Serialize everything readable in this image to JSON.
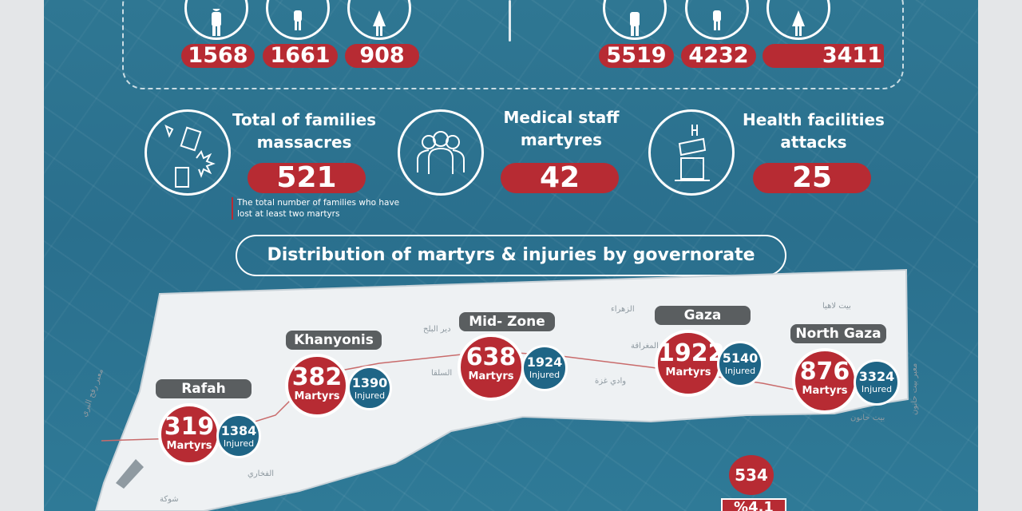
{
  "top_groups": [
    {
      "values": [
        "1568",
        "1661",
        "908"
      ]
    },
    {
      "values": [
        "5519",
        "4232",
        "3411"
      ]
    }
  ],
  "stats": [
    {
      "title": "Total of families massacres",
      "value": "521",
      "icon": "collapsed-building-icon"
    },
    {
      "title": "Medical staff martyres",
      "value": "42",
      "icon": "medical-staff-icon"
    },
    {
      "title": "Health facilities attacks",
      "value": "25",
      "icon": "damaged-hospital-icon"
    }
  ],
  "families_note": "The total number of families who have lost at least two martyrs",
  "distribution_title": "Distribution of martyrs & injuries by governorate",
  "governorates": [
    {
      "name": "Rafah",
      "martyrs": "319",
      "injured": "1384"
    },
    {
      "name": "Khanyonis",
      "martyrs": "382",
      "injured": "1390"
    },
    {
      "name": "Mid- Zone",
      "martyrs": "638",
      "injured": "1924"
    },
    {
      "name": "Gaza",
      "martyrs": "1922",
      "injured": "5140"
    },
    {
      "name": "North Gaza",
      "martyrs": "876",
      "injured": "3324"
    }
  ],
  "martyrs_label": "Martyrs",
  "injured_label": "Injured",
  "bottom_value": "534",
  "bottom_percent": "%4.1",
  "map_places": [
    "بيت لاهيا",
    "الزهراء",
    "دير البلح",
    "المغراقة",
    "السلقا",
    "وادي غزة",
    "بيت حانون",
    "الفخاري",
    "شوكة",
    "معبر رفح البري",
    "معبر بيت حانون"
  ],
  "colors": {
    "accent_red": "#b72b33",
    "panel_blue": "#2a6f8d",
    "injured_blue": "#1f6586",
    "label_gray": "#5a5e60"
  }
}
